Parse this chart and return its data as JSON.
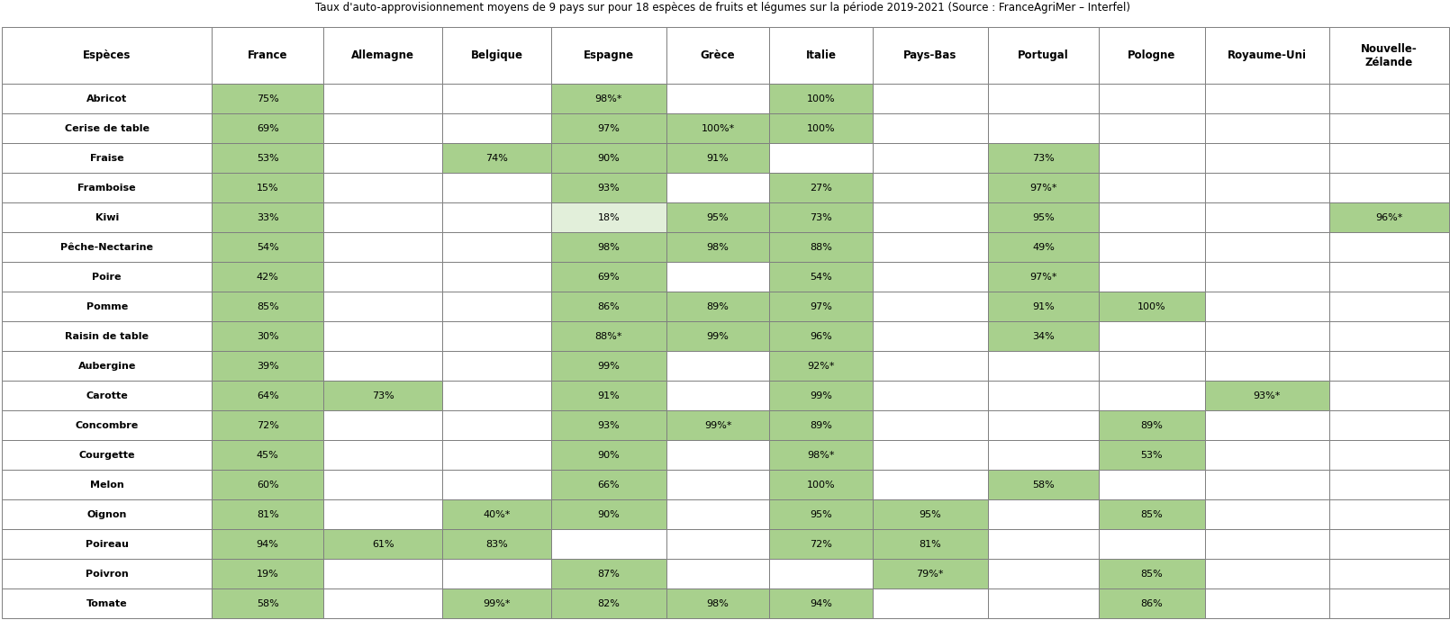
{
  "columns": [
    "Espèces",
    "France",
    "Allemagne",
    "Belgique",
    "Espagne",
    "Grèce",
    "Italie",
    "Pays-Bas",
    "Portugal",
    "Pologne",
    "Royaume-Uni",
    "Nouvelle-\nZélande"
  ],
  "col_keys": [
    "Espèces",
    "France",
    "Allemagne",
    "Belgique",
    "Espagne",
    "Grèce",
    "Italie",
    "Pays-Bas",
    "Portugal",
    "Pologne",
    "Royaume-Uni",
    "Nouvelle-\nZélande"
  ],
  "rows": [
    [
      "Abricot",
      "75%",
      "",
      "",
      "98%*",
      "",
      "100%",
      "",
      "",
      "",
      "",
      ""
    ],
    [
      "Cerise de table",
      "69%",
      "",
      "",
      "97%",
      "100%*",
      "100%",
      "",
      "",
      "",
      "",
      ""
    ],
    [
      "Fraise",
      "53%",
      "",
      "74%",
      "90%",
      "91%",
      "",
      "",
      "73%",
      "",
      "",
      ""
    ],
    [
      "Framboise",
      "15%",
      "",
      "",
      "93%",
      "",
      "27%",
      "",
      "97%*",
      "",
      "",
      ""
    ],
    [
      "Kiwi",
      "33%",
      "",
      "",
      "18%",
      "95%",
      "73%",
      "",
      "95%",
      "",
      "",
      "96%*"
    ],
    [
      "Pêche-Nectarine",
      "54%",
      "",
      "",
      "98%",
      "98%",
      "88%",
      "",
      "49%",
      "",
      "",
      ""
    ],
    [
      "Poire",
      "42%",
      "",
      "",
      "69%",
      "",
      "54%",
      "",
      "97%*",
      "",
      "",
      ""
    ],
    [
      "Pomme",
      "85%",
      "",
      "",
      "86%",
      "89%",
      "97%",
      "",
      "91%",
      "100%",
      "",
      ""
    ],
    [
      "Raisin de table",
      "30%",
      "",
      "",
      "88%*",
      "99%",
      "96%",
      "",
      "34%",
      "",
      "",
      ""
    ],
    [
      "Aubergine",
      "39%",
      "",
      "",
      "99%",
      "",
      "92%*",
      "",
      "",
      "",
      "",
      ""
    ],
    [
      "Carotte",
      "64%",
      "73%",
      "",
      "91%",
      "",
      "99%",
      "",
      "",
      "",
      "93%*",
      ""
    ],
    [
      "Concombre",
      "72%",
      "",
      "",
      "93%",
      "99%*",
      "89%",
      "",
      "",
      "89%",
      "",
      ""
    ],
    [
      "Courgette",
      "45%",
      "",
      "",
      "90%",
      "",
      "98%*",
      "",
      "",
      "53%",
      "",
      ""
    ],
    [
      "Melon",
      "60%",
      "",
      "",
      "66%",
      "",
      "100%",
      "",
      "58%",
      "",
      "",
      ""
    ],
    [
      "Oignon",
      "81%",
      "",
      "40%*",
      "90%",
      "",
      "95%",
      "95%",
      "",
      "85%",
      "",
      ""
    ],
    [
      "Poireau",
      "94%",
      "61%",
      "83%",
      "",
      "",
      "72%",
      "81%",
      "",
      "",
      "",
      ""
    ],
    [
      "Poivron",
      "19%",
      "",
      "",
      "87%",
      "",
      "",
      "79%*",
      "",
      "85%",
      "",
      ""
    ],
    [
      "Tomate",
      "58%",
      "",
      "99%*",
      "82%",
      "98%",
      "94%",
      "",
      "",
      "86%",
      "",
      ""
    ]
  ],
  "green_cells": {
    "Abricot": [
      "France",
      "Espagne",
      "Italie"
    ],
    "Cerise de table": [
      "France",
      "Espagne",
      "Grèce",
      "Italie"
    ],
    "Fraise": [
      "France",
      "Belgique",
      "Espagne",
      "Grèce",
      "Portugal"
    ],
    "Framboise": [
      "France",
      "Espagne",
      "Italie",
      "Portugal"
    ],
    "Kiwi": [
      "France",
      "Grèce",
      "Italie",
      "Portugal",
      "Nouvelle-\nZélande"
    ],
    "Pêche-Nectarine": [
      "France",
      "Espagne",
      "Grèce",
      "Italie",
      "Portugal"
    ],
    "Poire": [
      "France",
      "Espagne",
      "Italie",
      "Portugal"
    ],
    "Pomme": [
      "France",
      "Espagne",
      "Grèce",
      "Italie",
      "Portugal",
      "Pologne"
    ],
    "Raisin de table": [
      "France",
      "Espagne",
      "Grèce",
      "Italie",
      "Portugal"
    ],
    "Aubergine": [
      "France",
      "Espagne",
      "Italie"
    ],
    "Carotte": [
      "France",
      "Allemagne",
      "Espagne",
      "Italie",
      "Royaume-Uni"
    ],
    "Concombre": [
      "France",
      "Espagne",
      "Grèce",
      "Italie",
      "Pologne"
    ],
    "Courgette": [
      "France",
      "Espagne",
      "Italie",
      "Pologne"
    ],
    "Melon": [
      "France",
      "Espagne",
      "Italie",
      "Portugal"
    ],
    "Oignon": [
      "France",
      "Belgique",
      "Espagne",
      "Italie",
      "Pays-Bas",
      "Pologne"
    ],
    "Poireau": [
      "France",
      "Allemagne",
      "Belgique",
      "Italie",
      "Pays-Bas"
    ],
    "Poivron": [
      "France",
      "Espagne",
      "Pays-Bas",
      "Pologne"
    ],
    "Tomate": [
      "France",
      "Belgique",
      "Espagne",
      "Grèce",
      "Italie",
      "Pologne"
    ]
  },
  "light_green_cells": {
    "Kiwi": [
      "Espagne"
    ]
  },
  "cell_bg_green": "#a8d08d",
  "cell_bg_light_green": "#e2efda",
  "cell_bg_white": "#ffffff",
  "cell_border": "#7f7f7f",
  "title": "Taux d'auto-approvisionnement moyens de 9 pays sur pour 18 espèces de fruits et légumes sur la période 2019-2021 (Source : FranceAgriMer – Interfel)",
  "col_widths_rel": [
    1.55,
    0.82,
    0.88,
    0.8,
    0.85,
    0.76,
    0.76,
    0.85,
    0.82,
    0.78,
    0.92,
    0.88
  ],
  "title_fontsize": 8.5,
  "header_fontsize": 8.5,
  "data_fontsize": 8.0
}
